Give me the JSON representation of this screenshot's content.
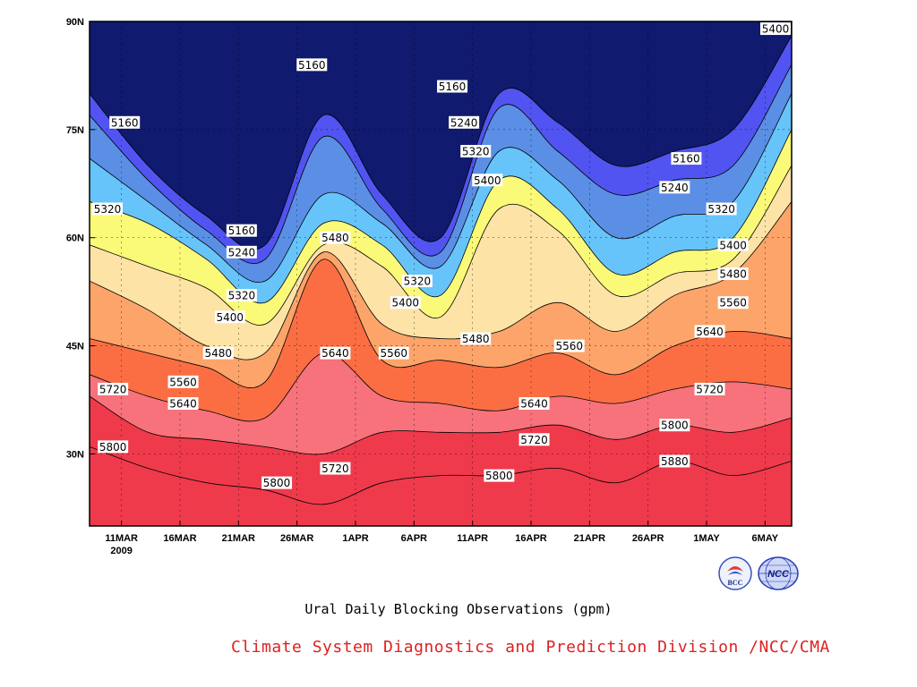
{
  "chart_data": {
    "type": "contour",
    "title": "Ural Daily Blocking Observations (gpm)",
    "credit": "Climate System Diagnostics and Prediction Division /NCC/CMA",
    "credit_color": "#dd2222",
    "x_label": "",
    "y_label": "",
    "x_ticks": [
      "11MAR",
      "16MAR",
      "21MAR",
      "26MAR",
      "1APR",
      "6APR",
      "11APR",
      "16APR",
      "21APR",
      "26APR",
      "1MAY",
      "6MAY"
    ],
    "x_year": "2009",
    "y_ticks": [
      "30N",
      "45N",
      "60N",
      "75N",
      "90N"
    ],
    "y_tick_values": [
      30,
      45,
      60,
      75,
      90
    ],
    "y_range": [
      20,
      90
    ],
    "x_range_days": [
      0,
      60
    ],
    "grid": "dotted",
    "contour_levels": [
      5160,
      5240,
      5320,
      5400,
      5480,
      5560,
      5640,
      5720,
      5800,
      5880
    ],
    "fill_colors": [
      "#101a6e",
      "#1c2ee6",
      "#5154f0",
      "#5b8fe6",
      "#66c4fb",
      "#fafa78",
      "#fde3a6",
      "#fca46a",
      "#fb6e44",
      "#f7727a",
      "#ef3a4c"
    ],
    "contour_latitudes": {
      "5160": [
        80,
        70,
        63,
        59,
        77,
        66,
        60,
        80,
        76,
        70,
        72,
        75,
        88
      ],
      "5240": [
        77,
        68,
        61,
        57,
        74,
        64,
        58,
        78,
        72,
        66,
        68,
        70,
        84
      ],
      "5320": [
        71,
        65,
        59,
        54,
        66,
        62,
        56,
        72,
        68,
        60,
        63,
        65,
        80
      ],
      "5400": [
        65,
        62,
        57,
        51,
        62,
        59,
        52,
        68,
        64,
        55,
        58,
        60,
        75
      ],
      "5480": [
        59,
        56,
        53,
        48,
        59,
        56,
        49,
        64,
        61,
        52,
        55,
        57,
        70
      ],
      "5560": [
        54,
        50,
        45,
        44,
        58,
        48,
        46,
        47,
        51,
        47,
        52,
        55,
        65
      ],
      "5640": [
        46,
        44,
        42,
        40,
        57,
        43,
        43,
        42,
        44,
        41,
        45,
        47,
        46
      ],
      "5720": [
        41,
        38,
        36,
        35,
        44,
        38,
        37,
        36,
        38,
        37,
        39,
        40,
        39
      ],
      "5800": [
        38,
        33,
        32,
        31,
        30,
        33,
        33,
        33,
        34,
        32,
        34,
        33,
        35
      ],
      "5880": [
        31,
        28,
        26,
        25,
        23,
        26,
        27,
        27,
        28,
        26,
        29,
        27,
        29
      ]
    },
    "contour_label_points": [
      {
        "text": "5160",
        "day": 3,
        "lat": 76
      },
      {
        "text": "5160",
        "day": 13,
        "lat": 61
      },
      {
        "text": "5160",
        "day": 19,
        "lat": 84
      },
      {
        "text": "5160",
        "day": 31,
        "lat": 81
      },
      {
        "text": "5160",
        "day": 51,
        "lat": 71
      },
      {
        "text": "5240",
        "day": 13,
        "lat": 58
      },
      {
        "text": "5240",
        "day": 32,
        "lat": 76
      },
      {
        "text": "5240",
        "day": 50,
        "lat": 67
      },
      {
        "text": "5320",
        "day": 1,
        "lat": 64
      },
      {
        "text": "5320",
        "day": 13,
        "lat": 52
      },
      {
        "text": "5320",
        "day": 28,
        "lat": 54
      },
      {
        "text": "5320",
        "day": 33,
        "lat": 72
      },
      {
        "text": "5320",
        "day": 54,
        "lat": 64
      },
      {
        "text": "5400",
        "day": 12,
        "lat": 49
      },
      {
        "text": "5400",
        "day": 27,
        "lat": 51
      },
      {
        "text": "5400",
        "day": 34,
        "lat": 68
      },
      {
        "text": "5400",
        "day": 55,
        "lat": 59
      },
      {
        "text": "5480",
        "day": 11,
        "lat": 44
      },
      {
        "text": "5480",
        "day": 21,
        "lat": 60
      },
      {
        "text": "5480",
        "day": 33,
        "lat": 46
      },
      {
        "text": "5480",
        "day": 55,
        "lat": 55
      },
      {
        "text": "5560",
        "day": 8,
        "lat": 40
      },
      {
        "text": "5560",
        "day": 26,
        "lat": 44
      },
      {
        "text": "5560",
        "day": 41,
        "lat": 45
      },
      {
        "text": "5560",
        "day": 55,
        "lat": 51
      },
      {
        "text": "5640",
        "day": 8,
        "lat": 37
      },
      {
        "text": "5640",
        "day": 21,
        "lat": 44
      },
      {
        "text": "5640",
        "day": 38,
        "lat": 37
      },
      {
        "text": "5640",
        "day": 53,
        "lat": 47
      },
      {
        "text": "5720",
        "day": 2,
        "lat": 39
      },
      {
        "text": "5720",
        "day": 21,
        "lat": 28
      },
      {
        "text": "5720",
        "day": 38,
        "lat": 32
      },
      {
        "text": "5720",
        "day": 53,
        "lat": 39
      },
      {
        "text": "5800",
        "day": 2,
        "lat": 31
      },
      {
        "text": "5800",
        "day": 16,
        "lat": 26
      },
      {
        "text": "5800",
        "day": 35,
        "lat": 27
      },
      {
        "text": "5800",
        "day": 50,
        "lat": 34
      },
      {
        "text": "5880",
        "day": 50,
        "lat": 29
      },
      {
        "text": "5400",
        "day": 59,
        "lat": 89
      }
    ]
  },
  "logos": [
    {
      "name": "bcc-logo",
      "text": "BCC"
    },
    {
      "name": "ncc-logo",
      "text": "NCC"
    }
  ]
}
